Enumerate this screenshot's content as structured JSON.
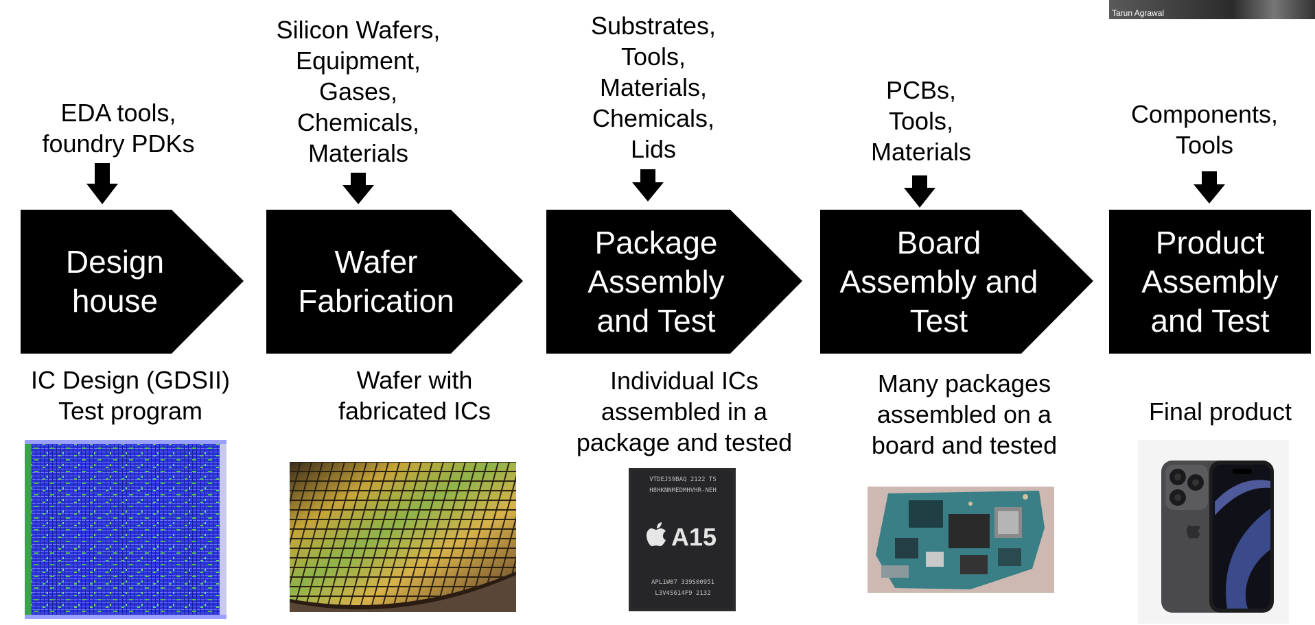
{
  "participant": {
    "name": "Tarun Agrawal"
  },
  "stages": [
    {
      "label": "Design\nhouse",
      "inputs": "EDA tools,\nfoundry PDKs",
      "output": "IC Design (GDSII)\nTest program",
      "image_icon": "ic-layout-image"
    },
    {
      "label": "Wafer\nFabrication",
      "inputs": "Silicon Wafers,\nEquipment,\nGases,\nChemicals,\nMaterials",
      "output": "Wafer with\nfabricated ICs",
      "image_icon": "wafer-image"
    },
    {
      "label": "Package\nAssembly\nand Test",
      "inputs": "Substrates,\nTools,\nMaterials,\nChemicals,\nLids",
      "output": "Individual ICs\nassembled in a\npackage and tested",
      "image_icon": "a15-chip-image",
      "chip": {
        "brand": "A15",
        "line1": "VTDEJS9BAQ 2122 TS",
        "line2": "H8HKNNMEDMHVHR-NEH",
        "line3": "APL1W07  339S00951",
        "line4": "L3V4S614F9  2132"
      }
    },
    {
      "label": "Board\nAssembly and\nTest",
      "inputs": "PCBs,\nTools,\nMaterials",
      "output": "Many packages\nassembled on a\nboard and tested",
      "image_icon": "circuit-board-image"
    },
    {
      "label": "Product\nAssembly\nand Test",
      "inputs": "Components,\nTools",
      "output": "Final product",
      "image_icon": "smartphone-image"
    }
  ],
  "colors": {
    "chevron": "#000000",
    "arrow": "#000000",
    "text": "#000000"
  }
}
